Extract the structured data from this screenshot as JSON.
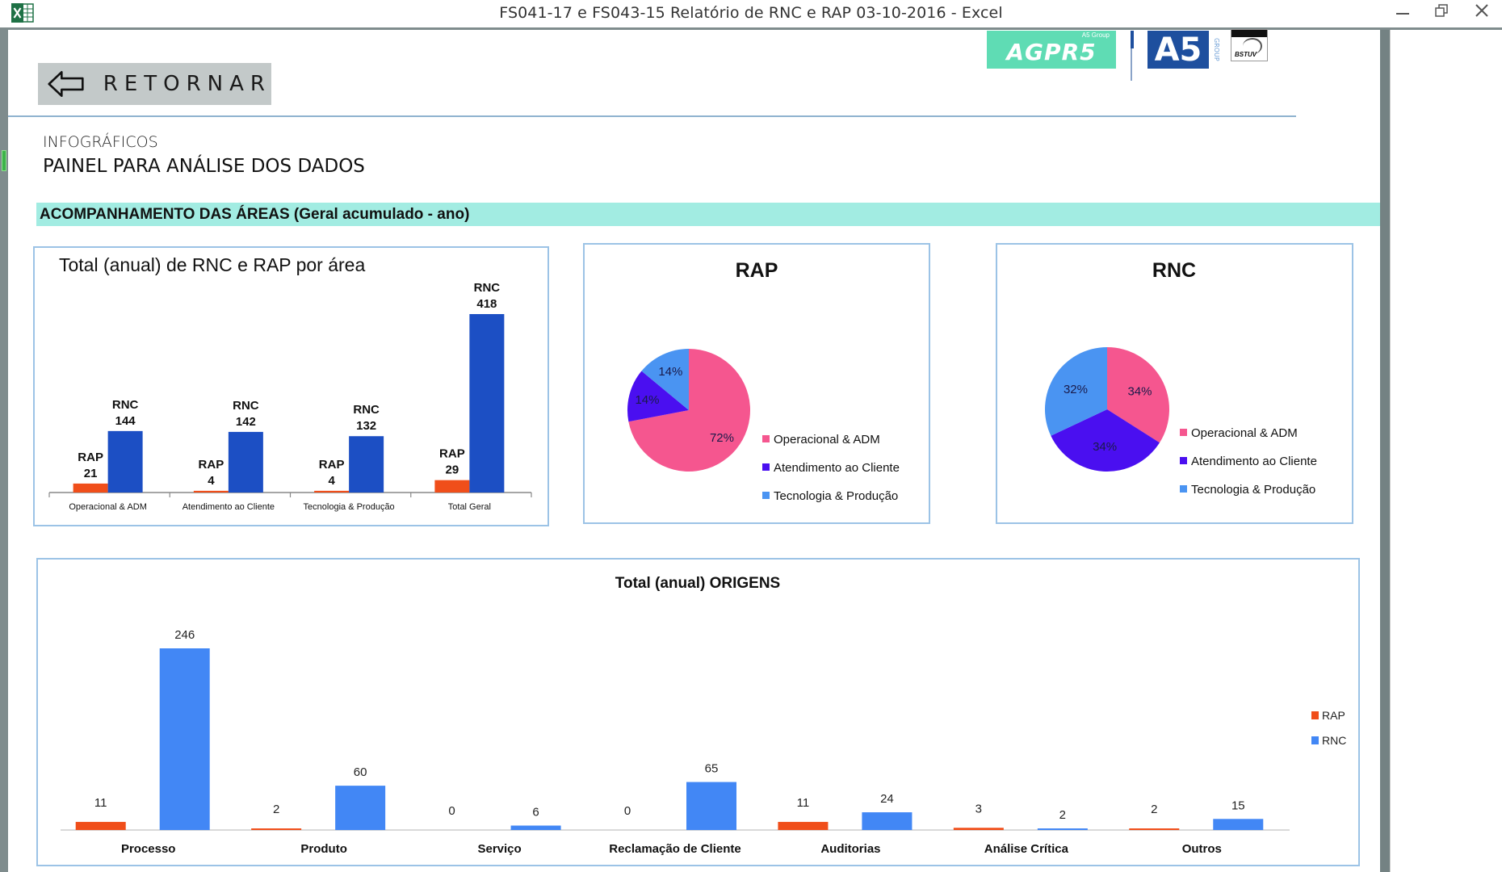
{
  "window": {
    "title": "FS041-17 e FS043-15 Relatório de RNC e RAP 03-10-2016 - Excel",
    "app_icon": "excel-icon",
    "controls": {
      "minimize": "—",
      "restore": "🗗",
      "close": "✕"
    }
  },
  "header": {
    "back_button_label": "RETORNAR",
    "back_icon": "arrow-left-icon",
    "logos": {
      "agpr5": "AGPR5",
      "agpr5_tag": "A5 Group",
      "a5": "A5",
      "a5_group": "GROUP",
      "cert": "BSTUV"
    },
    "subtitle": "INFOGRÁFICOS",
    "title": "PAINEL PARA ANÁLISE DOS DADOS"
  },
  "section": {
    "label": "ACOMPANHAMENTO DAS ÁREAS (Geral acumulado - ano)"
  },
  "colors": {
    "rap_bar": "#f04e1a",
    "rnc_bar_area": "#1c4fc4",
    "rnc_bar_origins": "#4287f5",
    "pie_operacional": "#f5568f",
    "pie_atendimento": "#4a0ff0",
    "pie_tecnologia": "#4a94f2",
    "band": "#a2ece2",
    "chart_border": "#9cc3e6"
  },
  "chart_data": [
    {
      "type": "bar",
      "title": "Total (anual) de RNC e RAP por área",
      "categories": [
        "Operacional & ADM",
        "Atendimento ao Cliente",
        "Tecnologia & Produção",
        "Total Geral"
      ],
      "series": [
        {
          "name": "RAP",
          "values": [
            21,
            4,
            4,
            29
          ]
        },
        {
          "name": "RNC",
          "values": [
            144,
            142,
            132,
            418
          ]
        }
      ],
      "xlabel": "",
      "ylabel": "",
      "ylim": [
        0,
        418
      ],
      "grid": false,
      "data_labels": "series name and value"
    },
    {
      "type": "pie",
      "title": "RAP",
      "labels": [
        "Operacional & ADM",
        "Atendimento ao Cliente",
        "Tecnologia & Produção"
      ],
      "values": [
        72,
        14,
        14
      ],
      "value_labels": [
        "72%",
        "14%",
        "14%"
      ],
      "legend": "right"
    },
    {
      "type": "pie",
      "title": "RNC",
      "labels": [
        "Operacional & ADM",
        "Atendimento ao Cliente",
        "Tecnologia & Produção"
      ],
      "values": [
        34,
        34,
        32
      ],
      "value_labels": [
        "34%",
        "34%",
        "32%"
      ],
      "legend": "right"
    },
    {
      "type": "bar",
      "title": "Total (anual) ORIGENS",
      "categories": [
        "Processo",
        "Produto",
        "Serviço",
        "Reclamação de Cliente",
        "Auditorias",
        "Análise Crítica",
        "Outros"
      ],
      "series": [
        {
          "name": "RAP",
          "values": [
            11,
            2,
            0,
            0,
            11,
            3,
            2
          ]
        },
        {
          "name": "RNC",
          "values": [
            246,
            60,
            6,
            65,
            24,
            2,
            15
          ]
        }
      ],
      "xlabel": "",
      "ylabel": "",
      "ylim": [
        0,
        246
      ],
      "grid": false,
      "legend": "right"
    }
  ]
}
